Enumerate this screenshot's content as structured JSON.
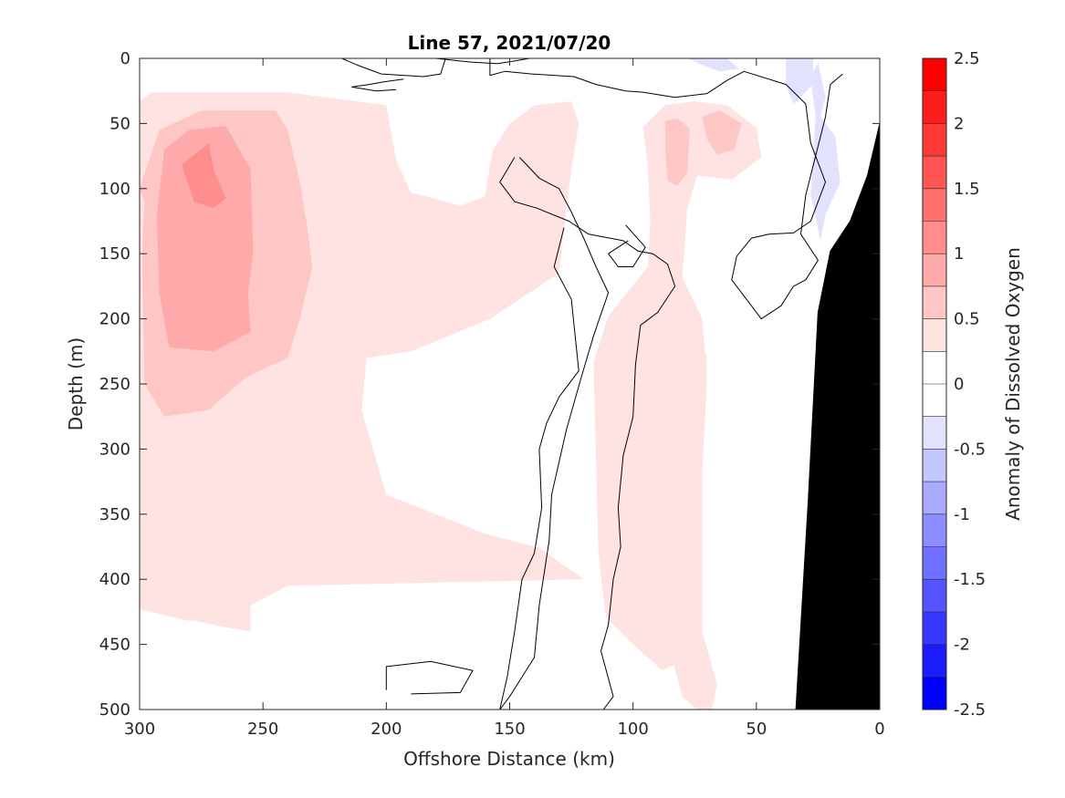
{
  "chart_data": {
    "type": "heatmap",
    "title": "Line 57, 2021/07/20",
    "xlabel": "Offshore Distance (km)",
    "ylabel": "Depth (m)",
    "colorbar_label": "Anomaly of Dissolved Oxygen",
    "xlim": [
      300,
      0
    ],
    "ylim": [
      0,
      500
    ],
    "x_reversed": true,
    "y_reversed": true,
    "x_ticks": [
      300,
      250,
      200,
      150,
      100,
      50,
      0
    ],
    "x_tick_labels": [
      "300",
      "250",
      "200",
      "150",
      "100",
      "50",
      "0"
    ],
    "y_ticks": [
      0,
      50,
      100,
      150,
      200,
      250,
      300,
      350,
      400,
      450,
      500
    ],
    "y_tick_labels": [
      "0",
      "50",
      "100",
      "150",
      "200",
      "250",
      "300",
      "350",
      "400",
      "450",
      "500"
    ],
    "clim": [
      -2.5,
      2.5
    ],
    "colorbar_ticks": [
      2.5,
      2,
      1.5,
      1,
      0.5,
      0,
      -0.5,
      -1,
      -1.5,
      -2,
      -2.5
    ],
    "colorbar_tick_labels": [
      "2.5",
      "2",
      "1.5",
      "1",
      "0.5",
      "0",
      "-0.5",
      "-1",
      "-1.5",
      "-2",
      "-2.5"
    ],
    "colorbar_levels": [
      {
        "min": 2.25,
        "max": 2.5,
        "color": "#ff0000"
      },
      {
        "min": 2.0,
        "max": 2.25,
        "color": "#ff1c1c"
      },
      {
        "min": 1.75,
        "max": 2.0,
        "color": "#ff3838"
      },
      {
        "min": 1.5,
        "max": 1.75,
        "color": "#ff5555"
      },
      {
        "min": 1.25,
        "max": 1.5,
        "color": "#ff7171"
      },
      {
        "min": 1.0,
        "max": 1.25,
        "color": "#ff8d8d"
      },
      {
        "min": 0.75,
        "max": 1.0,
        "color": "#ffaaaa"
      },
      {
        "min": 0.5,
        "max": 0.75,
        "color": "#ffc6c6"
      },
      {
        "min": 0.25,
        "max": 0.5,
        "color": "#ffe2e2"
      },
      {
        "min": 0.0,
        "max": 0.25,
        "color": "#ffffff"
      },
      {
        "min": -0.25,
        "max": 0.0,
        "color": "#ffffff"
      },
      {
        "min": -0.5,
        "max": -0.25,
        "color": "#e2e2ff"
      },
      {
        "min": -0.75,
        "max": -0.5,
        "color": "#c6c6ff"
      },
      {
        "min": -1.0,
        "max": -0.75,
        "color": "#aaaaff"
      },
      {
        "min": -1.25,
        "max": -1.0,
        "color": "#8d8dff"
      },
      {
        "min": -1.5,
        "max": -1.25,
        "color": "#7171ff"
      },
      {
        "min": -1.75,
        "max": -1.5,
        "color": "#5555ff"
      },
      {
        "min": -2.0,
        "max": -1.75,
        "color": "#3838ff"
      },
      {
        "min": -2.25,
        "max": -2.0,
        "color": "#1c1cff"
      },
      {
        "min": -2.5,
        "max": -2.25,
        "color": "#0000ff"
      }
    ],
    "filled_regions": [
      {
        "level": 0.25,
        "color": "#ffe2e2",
        "points": [
          [
            300,
            33
          ],
          [
            295,
            26
          ],
          [
            240,
            26
          ],
          [
            200,
            36
          ],
          [
            196,
            78
          ],
          [
            190,
            103
          ],
          [
            170,
            113
          ],
          [
            160,
            106
          ],
          [
            157,
            71
          ],
          [
            150,
            50
          ],
          [
            140,
            36
          ],
          [
            125,
            33
          ],
          [
            122,
            50
          ],
          [
            125,
            85
          ],
          [
            128,
            130
          ],
          [
            130,
            165
          ],
          [
            158,
            200
          ],
          [
            190,
            225
          ],
          [
            208,
            230
          ],
          [
            210,
            270
          ],
          [
            200,
            335
          ],
          [
            180,
            350
          ],
          [
            160,
            365
          ],
          [
            138,
            376
          ],
          [
            120,
            400
          ],
          [
            240,
            405
          ],
          [
            260,
            425
          ],
          [
            280,
            432
          ],
          [
            300,
            423
          ]
        ]
      },
      {
        "level": 0.25,
        "color": "#ffe2e2",
        "points": [
          [
            285,
            385
          ],
          [
            265,
            382
          ],
          [
            255,
            412
          ],
          [
            255,
            440
          ],
          [
            265,
            437
          ],
          [
            282,
            430
          ],
          [
            290,
            400
          ]
        ]
      },
      {
        "level": 0.25,
        "color": "#ffe2e2",
        "points": [
          [
            96,
            53
          ],
          [
            87,
            36
          ],
          [
            75,
            33
          ],
          [
            62,
            36
          ],
          [
            50,
            53
          ],
          [
            48,
            76
          ],
          [
            60,
            93
          ],
          [
            74,
            90
          ],
          [
            78,
            115
          ],
          [
            80,
            168
          ],
          [
            72,
            200
          ],
          [
            70,
            246
          ],
          [
            72,
            316
          ],
          [
            72,
            455
          ],
          [
            88,
            470
          ],
          [
            100,
            450
          ],
          [
            111,
            429
          ],
          [
            114,
            380
          ],
          [
            115,
            310
          ],
          [
            116,
            233
          ],
          [
            110,
            198
          ],
          [
            94,
            160
          ],
          [
            93,
            125
          ],
          [
            94,
            83
          ]
        ]
      },
      {
        "level": 0.25,
        "color": "#ffe2e2",
        "points": [
          [
            100,
            200
          ],
          [
            88,
            240
          ],
          [
            90,
            300
          ],
          [
            93,
            330
          ],
          [
            91,
            360
          ],
          [
            96,
            410
          ],
          [
            85,
            455
          ],
          [
            80,
            490
          ],
          [
            74,
            500
          ],
          [
            68,
            500
          ],
          [
            66,
            480
          ],
          [
            72,
            440
          ],
          [
            75,
            380
          ],
          [
            72,
            320
          ],
          [
            70,
            230
          ],
          [
            77,
            200
          ]
        ]
      },
      {
        "level": 0.5,
        "color": "#ffc6c6",
        "points": [
          [
            292,
            55
          ],
          [
            275,
            40
          ],
          [
            245,
            40
          ],
          [
            240,
            55
          ],
          [
            235,
            95
          ],
          [
            232,
            130
          ],
          [
            230,
            160
          ],
          [
            235,
            200
          ],
          [
            240,
            230
          ],
          [
            257,
            245
          ],
          [
            272,
            270
          ],
          [
            290,
            275
          ],
          [
            298,
            250
          ],
          [
            299,
            150
          ],
          [
            298,
            110
          ],
          [
            300,
            100
          ]
        ]
      },
      {
        "level": 0.5,
        "color": "#ffc6c6",
        "points": [
          [
            87,
            48
          ],
          [
            82,
            46
          ],
          [
            77,
            54
          ],
          [
            78,
            88
          ],
          [
            82,
            98
          ],
          [
            86,
            94
          ],
          [
            87,
            70
          ]
        ]
      },
      {
        "level": 0.5,
        "color": "#ffc6c6",
        "points": [
          [
            72,
            45
          ],
          [
            65,
            40
          ],
          [
            56,
            50
          ],
          [
            59,
            70
          ],
          [
            66,
            74
          ],
          [
            70,
            62
          ]
        ]
      },
      {
        "level": 0.75,
        "color": "#ffaaaa",
        "points": [
          [
            290,
            70
          ],
          [
            280,
            55
          ],
          [
            265,
            52
          ],
          [
            255,
            85
          ],
          [
            254,
            150
          ],
          [
            256,
            180
          ],
          [
            255,
            210
          ],
          [
            270,
            225
          ],
          [
            288,
            222
          ],
          [
            292,
            180
          ],
          [
            293,
            120
          ]
        ]
      },
      {
        "level": 1.0,
        "color": "#ff8d8d",
        "points": [
          [
            283,
            82
          ],
          [
            272,
            65
          ],
          [
            270,
            86
          ],
          [
            265,
            107
          ],
          [
            270,
            115
          ],
          [
            278,
            110
          ],
          [
            280,
            98
          ]
        ]
      },
      {
        "level": -0.25,
        "color": "#e2e2ff",
        "points": [
          [
            78,
            0
          ],
          [
            62,
            0
          ],
          [
            57,
            8
          ],
          [
            65,
            10
          ],
          [
            72,
            5
          ]
        ]
      },
      {
        "level": -0.25,
        "color": "#e2e2ff",
        "points": [
          [
            25,
            3
          ],
          [
            22,
            30
          ],
          [
            24,
            45
          ],
          [
            18,
            60
          ],
          [
            16,
            95
          ],
          [
            22,
            120
          ],
          [
            24,
            140
          ],
          [
            28,
            105
          ],
          [
            27,
            75
          ],
          [
            26,
            45
          ],
          [
            28,
            15
          ]
        ]
      },
      {
        "level": -0.25,
        "color": "#e2e2ff",
        "points": [
          [
            38,
            0
          ],
          [
            27,
            0
          ],
          [
            27,
            20
          ],
          [
            35,
            35
          ],
          [
            38,
            20
          ]
        ]
      }
    ],
    "contour_zero": [
      {
        "points": [
          [
            218,
            0
          ],
          [
            212,
            5
          ],
          [
            202,
            12
          ],
          [
            185,
            14
          ],
          [
            178,
            12
          ],
          [
            176,
            0
          ]
        ]
      },
      {
        "points": [
          [
            193,
            16
          ],
          [
            201,
            18
          ],
          [
            207,
            20
          ],
          [
            214,
            22
          ],
          [
            204,
            25
          ],
          [
            196,
            24
          ]
        ]
      },
      {
        "points": [
          [
            158,
            0
          ],
          [
            158,
            13
          ],
          [
            152,
            10
          ],
          [
            141,
            12
          ],
          [
            124,
            14
          ],
          [
            115,
            20
          ],
          [
            103,
            25
          ],
          [
            96,
            26
          ],
          [
            83,
            30
          ],
          [
            70,
            27
          ],
          [
            62,
            17
          ],
          [
            55,
            10
          ],
          [
            38,
            20
          ],
          [
            30,
            35
          ],
          [
            28,
            65
          ],
          [
            22,
            95
          ],
          [
            28,
            125
          ],
          [
            35,
            134
          ],
          [
            45,
            135
          ],
          [
            52,
            138
          ],
          [
            58,
            152
          ],
          [
            60,
            170
          ],
          [
            54,
            185
          ],
          [
            48,
            200
          ],
          [
            40,
            190
          ],
          [
            35,
            175
          ],
          [
            30,
            170
          ],
          [
            25,
            155
          ],
          [
            32,
            135
          ],
          [
            30,
            105
          ],
          [
            26,
            75
          ],
          [
            22,
            45
          ],
          [
            20,
            20
          ],
          [
            15,
            12
          ]
        ]
      },
      {
        "points": [
          [
            135,
            0
          ],
          [
            142,
            0
          ],
          [
            148,
            2
          ],
          [
            155,
            4
          ],
          [
            165,
            3
          ],
          [
            180,
            0
          ]
        ]
      },
      {
        "points": [
          [
            146,
            76
          ],
          [
            138,
            92
          ],
          [
            130,
            100
          ],
          [
            125,
            118
          ],
          [
            120,
            138
          ],
          [
            115,
            160
          ],
          [
            110,
            180
          ],
          [
            116,
            213
          ],
          [
            121,
            245
          ],
          [
            127,
            285
          ],
          [
            133,
            335
          ],
          [
            134,
            370
          ],
          [
            138,
            420
          ],
          [
            140,
            460
          ],
          [
            150,
            490
          ],
          [
            154,
            500
          ]
        ]
      },
      {
        "points": [
          [
            128,
            130
          ],
          [
            132,
            160
          ],
          [
            125,
            185
          ],
          [
            122,
            240
          ],
          [
            130,
            260
          ],
          [
            135,
            280
          ],
          [
            138,
            300
          ],
          [
            137,
            345
          ],
          [
            140,
            380
          ],
          [
            145,
            400
          ],
          [
            148,
            440
          ],
          [
            151,
            475
          ],
          [
            154,
            500
          ]
        ]
      },
      {
        "points": [
          [
            148,
            76
          ],
          [
            154,
            95
          ],
          [
            148,
            110
          ],
          [
            139,
            115
          ],
          [
            126,
            125
          ],
          [
            118,
            135
          ],
          [
            104,
            140
          ],
          [
            98,
            148
          ],
          [
            92,
            150
          ],
          [
            86,
            158
          ],
          [
            83,
            175
          ],
          [
            90,
            195
          ],
          [
            97,
            205
          ],
          [
            99,
            235
          ],
          [
            100,
            275
          ],
          [
            104,
            305
          ],
          [
            106,
            345
          ],
          [
            105,
            375
          ],
          [
            108,
            400
          ],
          [
            110,
            435
          ],
          [
            113,
            455
          ],
          [
            108,
            490
          ],
          [
            112,
            500
          ]
        ]
      },
      {
        "points": [
          [
            103,
            128
          ],
          [
            95,
            145
          ],
          [
            100,
            160
          ],
          [
            106,
            160
          ],
          [
            110,
            150
          ],
          [
            106,
            145
          ],
          [
            102,
            140
          ]
        ]
      },
      {
        "points": [
          [
            200,
            485
          ],
          [
            200,
            467
          ],
          [
            182,
            463
          ],
          [
            165,
            470
          ],
          [
            170,
            487
          ],
          [
            190,
            488
          ]
        ]
      }
    ],
    "shelf_bathymetry": [
      [
        34,
        500
      ],
      [
        29,
        340
      ],
      [
        25,
        195
      ],
      [
        20,
        148
      ],
      [
        12,
        125
      ],
      [
        5,
        90
      ],
      [
        0,
        50
      ]
    ],
    "annotations": []
  }
}
